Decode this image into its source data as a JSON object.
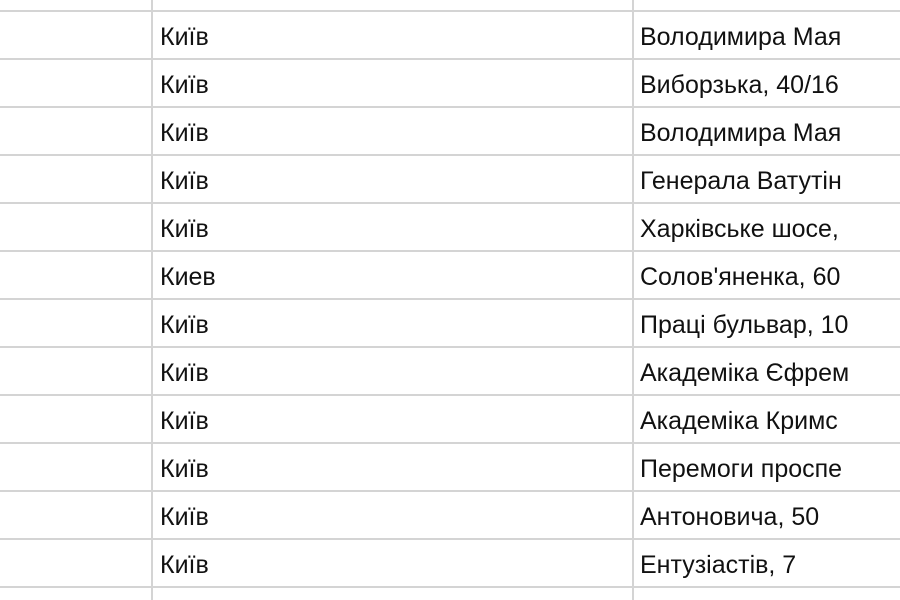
{
  "rows": [
    {
      "city": "Київ",
      "address": "Володимира Мая"
    },
    {
      "city": "Київ",
      "address": "Виборзька, 40/16"
    },
    {
      "city": "Київ",
      "address": "Володимира Мая"
    },
    {
      "city": "Київ",
      "address": "Генерала Ватутін"
    },
    {
      "city": "Київ",
      "address": "Харківське шосе,"
    },
    {
      "city": "Киев",
      "address": "Солов'яненка, 60"
    },
    {
      "city": "Київ",
      "address": "Праці бульвар, 10"
    },
    {
      "city": "Київ",
      "address": "Академіка Єфрем"
    },
    {
      "city": "Київ",
      "address": "Академіка Кримс"
    },
    {
      "city": "Київ",
      "address": "Перемоги проспе"
    },
    {
      "city": "Київ",
      "address": "Антоновича, 50"
    },
    {
      "city": "Київ",
      "address": "Ентузіастів, 7"
    }
  ]
}
